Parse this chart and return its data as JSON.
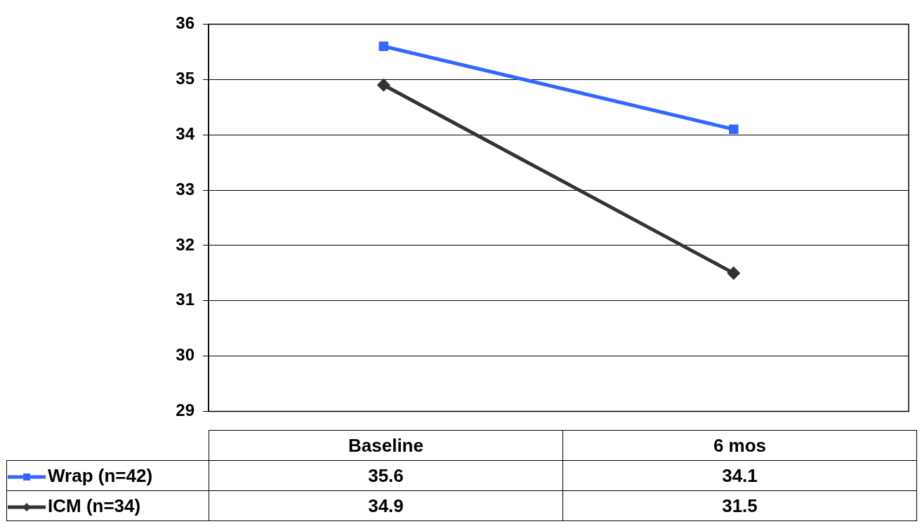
{
  "chart_data": {
    "type": "line",
    "categories": [
      "Baseline",
      "6 mos"
    ],
    "series": [
      {
        "name": "Wrap (n=42)",
        "color": "#3366ff",
        "values": [
          35.6,
          34.1
        ],
        "marker": "square"
      },
      {
        "name": "ICM (n=34)",
        "color": "#333333",
        "values": [
          34.9,
          31.5
        ],
        "marker": "diamond"
      }
    ],
    "ylim": [
      29,
      36
    ],
    "yticks": [
      29,
      30,
      31,
      32,
      33,
      34,
      35,
      36
    ],
    "grid": "y",
    "legend": "bottom",
    "data_labels": true,
    "line_style": "solid"
  }
}
